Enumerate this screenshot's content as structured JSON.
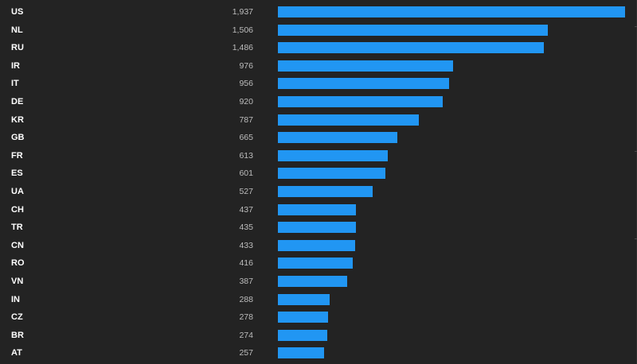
{
  "chart_data": {
    "type": "bar",
    "orientation": "horizontal",
    "categories": [
      "US",
      "NL",
      "RU",
      "IR",
      "IT",
      "DE",
      "KR",
      "GB",
      "FR",
      "ES",
      "UA",
      "CH",
      "TR",
      "CN",
      "RO",
      "VN",
      "IN",
      "CZ",
      "BR",
      "AT"
    ],
    "values": [
      1937,
      1506,
      1486,
      976,
      956,
      920,
      787,
      665,
      613,
      601,
      527,
      437,
      435,
      433,
      416,
      387,
      288,
      278,
      274,
      257
    ],
    "value_labels": [
      "1,937",
      "1,506",
      "1,486",
      "976",
      "956",
      "920",
      "787",
      "665",
      "613",
      "601",
      "527",
      "437",
      "435",
      "433",
      "416",
      "387",
      "288",
      "278",
      "274",
      "257"
    ],
    "xlim": [
      0,
      1937
    ],
    "grid": false,
    "legend": "none"
  },
  "colors": {
    "bar": "#2196f3",
    "background": "#232323",
    "label": "#ffffff",
    "value": "#bdbdbd"
  }
}
